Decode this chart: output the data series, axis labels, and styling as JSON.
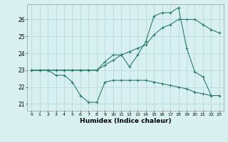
{
  "xlabel": "Humidex (Indice chaleur)",
  "x": [
    0,
    1,
    2,
    3,
    4,
    5,
    6,
    7,
    8,
    9,
    10,
    11,
    12,
    13,
    14,
    15,
    16,
    17,
    18,
    19,
    20,
    21,
    22,
    23
  ],
  "curve1": [
    23.0,
    23.0,
    23.0,
    23.0,
    23.0,
    23.0,
    23.0,
    23.0,
    23.0,
    23.3,
    23.6,
    23.9,
    24.1,
    24.3,
    24.5,
    25.1,
    25.5,
    25.7,
    26.0,
    26.0,
    26.0,
    25.7,
    25.4,
    25.2
  ],
  "curve2_x": [
    0,
    1,
    2,
    3,
    4,
    5,
    6,
    7,
    8,
    9,
    10,
    11,
    12,
    13,
    14,
    15,
    16,
    17,
    18,
    19,
    20,
    21,
    22
  ],
  "curve2": [
    23.0,
    23.0,
    23.0,
    23.0,
    23.0,
    23.0,
    23.0,
    23.0,
    23.0,
    23.5,
    23.9,
    23.9,
    23.2,
    23.9,
    24.7,
    26.2,
    26.4,
    26.4,
    26.7,
    24.3,
    22.9,
    22.6,
    21.5
  ],
  "curve3": [
    23.0,
    23.0,
    23.0,
    22.7,
    22.7,
    22.3,
    21.5,
    21.1,
    21.1,
    22.3,
    22.4,
    22.4,
    22.4,
    22.4,
    22.4,
    22.3,
    22.2,
    22.1,
    22.0,
    21.9,
    21.7,
    21.6,
    21.5,
    21.5
  ],
  "color": "#2a7b6a",
  "bg_color": "#d8f0f0",
  "grid_color": "#b8dada",
  "ylim": [
    20.6,
    26.9
  ],
  "yticks": [
    21,
    22,
    23,
    24,
    25,
    26
  ],
  "xtick_labels": [
    "0",
    "1",
    "2",
    "3",
    "4",
    "5",
    "6",
    "7",
    "8",
    "9",
    "10",
    "11",
    "12",
    "13",
    "14",
    "15",
    "16",
    "17",
    "18",
    "19",
    "20",
    "21",
    "22",
    "23"
  ]
}
